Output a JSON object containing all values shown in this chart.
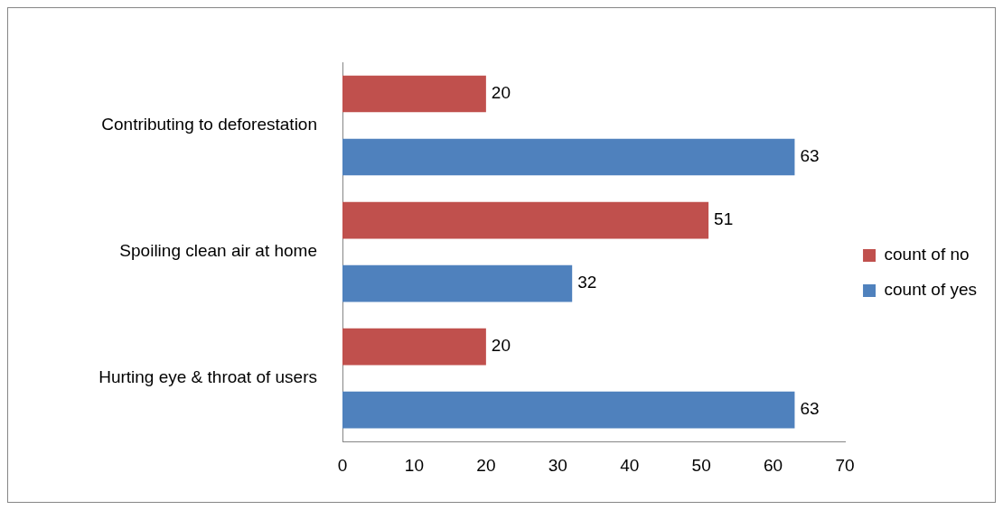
{
  "chart_data": {
    "type": "bar",
    "orientation": "horizontal",
    "categories": [
      "Contributing to deforestation",
      "Spoiling clean air at home",
      "Hurting eye & throat of users"
    ],
    "series": [
      {
        "name": "count of no",
        "color": "#c0504d",
        "values": [
          20,
          51,
          20
        ]
      },
      {
        "name": "count of yes",
        "color": "#4f81bd",
        "values": [
          63,
          32,
          63
        ]
      }
    ],
    "xlim": [
      0,
      70
    ],
    "xticks": [
      0,
      10,
      20,
      30,
      40,
      50,
      60,
      70
    ],
    "grid": false,
    "legend": "right",
    "data_labels": true
  }
}
